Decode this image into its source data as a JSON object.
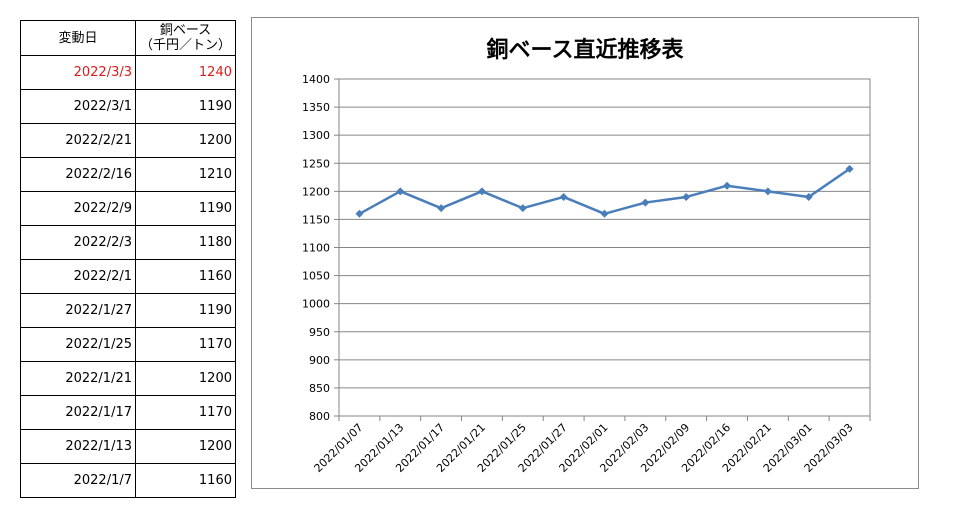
{
  "table": {
    "header_date": "変動日",
    "header_price_line1": "銅ベース",
    "header_price_line2": "（千円／トン）",
    "rows": [
      {
        "date": "2022/3/3",
        "price": "1240"
      },
      {
        "date": "2022/3/1",
        "price": "1190"
      },
      {
        "date": "2022/2/21",
        "price": "1200"
      },
      {
        "date": "2022/2/16",
        "price": "1210"
      },
      {
        "date": "2022/2/9",
        "price": "1190"
      },
      {
        "date": "2022/2/3",
        "price": "1180"
      },
      {
        "date": "2022/2/1",
        "price": "1160"
      },
      {
        "date": "2022/1/27",
        "price": "1190"
      },
      {
        "date": "2022/1/25",
        "price": "1170"
      },
      {
        "date": "2022/1/21",
        "price": "1200"
      },
      {
        "date": "2022/1/17",
        "price": "1170"
      },
      {
        "date": "2022/1/13",
        "price": "1200"
      },
      {
        "date": "2022/1/7",
        "price": "1160"
      }
    ]
  },
  "colors": {
    "latest_row": "#e01b1b",
    "series_line": "#4a7ebb"
  },
  "chart_data": {
    "type": "line",
    "title": "銅ベース直近推移表",
    "xlabel": "",
    "ylabel": "",
    "categories": [
      "2022/01/07",
      "2022/01/13",
      "2022/01/17",
      "2022/01/21",
      "2022/01/25",
      "2022/01/27",
      "2022/02/01",
      "2022/02/03",
      "2022/02/09",
      "2022/02/16",
      "2022/02/21",
      "2022/03/01",
      "2022/03/03"
    ],
    "series": [
      {
        "values": [
          1160,
          1200,
          1170,
          1200,
          1170,
          1190,
          1160,
          1180,
          1190,
          1210,
          1200,
          1190,
          1240
        ]
      }
    ],
    "ylim": [
      800,
      1400
    ],
    "yticks": [
      800,
      850,
      900,
      950,
      1000,
      1050,
      1100,
      1150,
      1200,
      1250,
      1300,
      1350,
      1400
    ],
    "grid": true,
    "legend": "none"
  }
}
